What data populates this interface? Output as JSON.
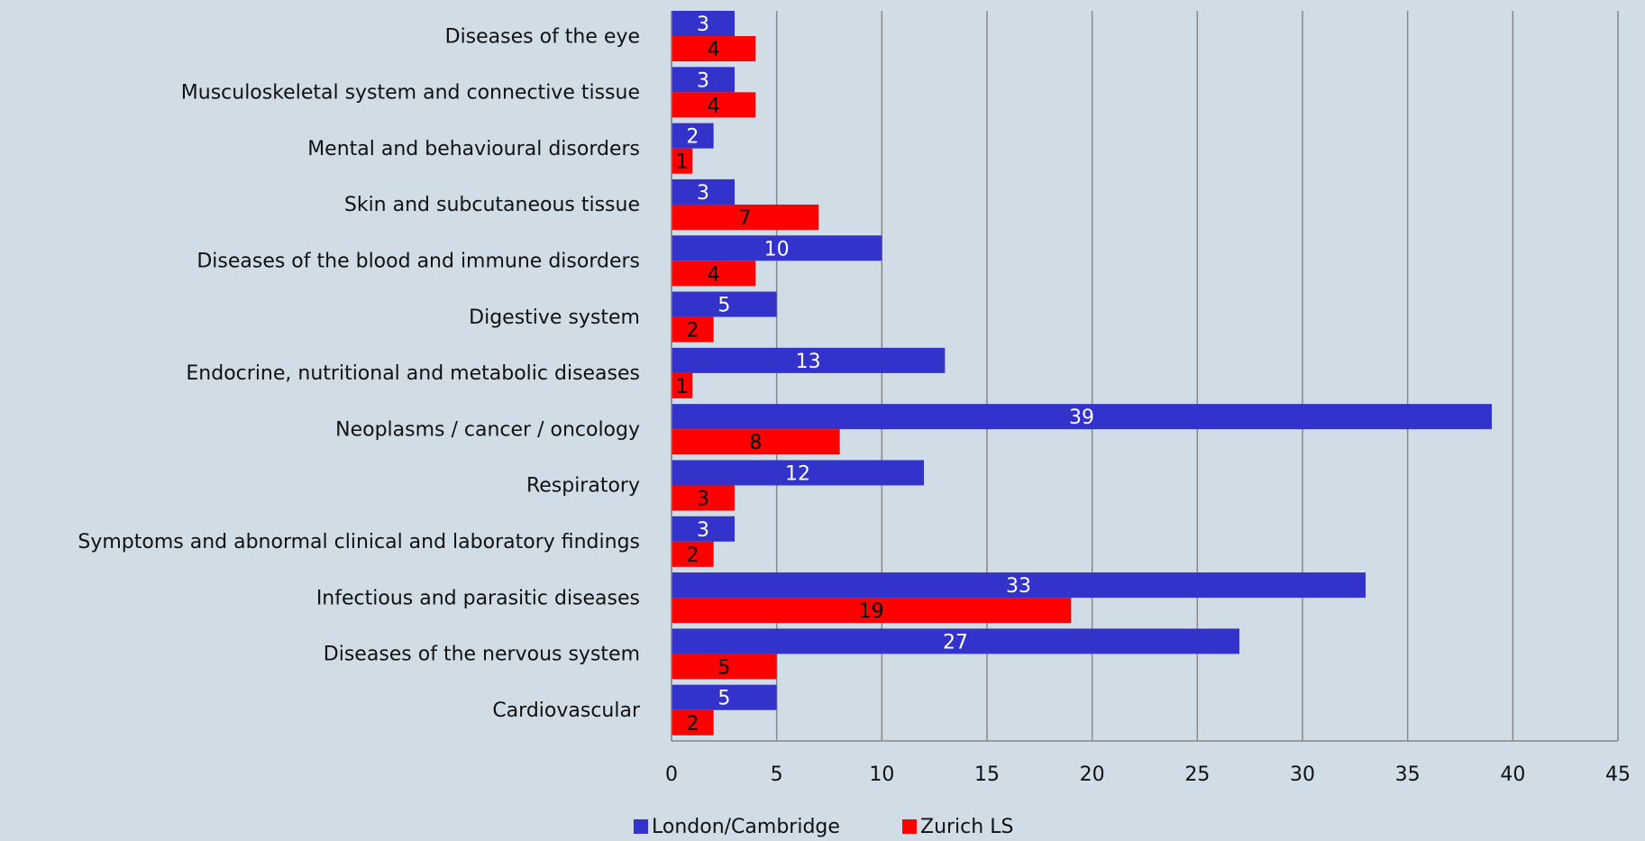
{
  "chart_data": {
    "type": "bar",
    "orientation": "horizontal",
    "categories": [
      "Diseases of the eye",
      "Musculoskeletal system and connective tissue",
      "Mental and behavioural disorders",
      "Skin and subcutaneous tissue",
      "Diseases of the blood and immune disorders",
      "Digestive system",
      "Endocrine, nutritional and metabolic diseases",
      "Neoplasms / cancer / oncology",
      "Respiratory",
      "Symptoms and abnormal clinical and laboratory findings",
      "Infectious and parasitic diseases",
      "Diseases of the nervous system",
      "Cardiovascular"
    ],
    "series": [
      {
        "name": "London/Cambridge",
        "color": "#3333cc",
        "values": [
          3,
          3,
          2,
          3,
          10,
          5,
          13,
          39,
          12,
          3,
          33,
          27,
          5
        ]
      },
      {
        "name": "Zurich LS",
        "color": "#ff0000",
        "values": [
          4,
          4,
          1,
          7,
          4,
          2,
          1,
          8,
          3,
          2,
          19,
          5,
          2
        ]
      }
    ],
    "xlim": [
      0,
      45
    ],
    "xticks": [
      0,
      5,
      10,
      15,
      20,
      25,
      30,
      35,
      40,
      45
    ],
    "grid": true,
    "legend": "bottom"
  }
}
